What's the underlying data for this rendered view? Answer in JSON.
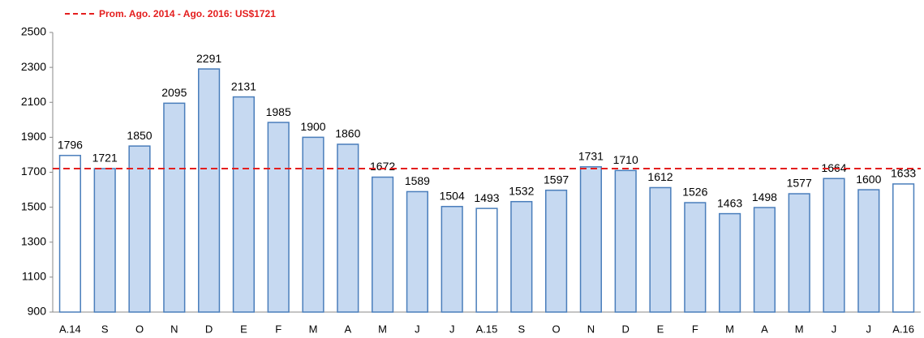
{
  "chart_data": {
    "type": "bar",
    "categories": [
      "A.14",
      "S",
      "O",
      "N",
      "D",
      "E",
      "F",
      "M",
      "A",
      "M",
      "J",
      "J",
      "A.15",
      "S",
      "O",
      "N",
      "D",
      "E",
      "F",
      "M",
      "A",
      "M",
      "J",
      "J",
      "A.16"
    ],
    "values": [
      1796,
      1721,
      1850,
      2095,
      2291,
      2131,
      1985,
      1900,
      1860,
      1672,
      1589,
      1504,
      1493,
      1532,
      1597,
      1731,
      1710,
      1612,
      1526,
      1463,
      1498,
      1577,
      1664,
      1600,
      1633
    ],
    "colors": [
      "#ffffff",
      "#c6d9f1",
      "#c6d9f1",
      "#c6d9f1",
      "#c6d9f1",
      "#c6d9f1",
      "#c6d9f1",
      "#c6d9f1",
      "#c6d9f1",
      "#c6d9f1",
      "#c6d9f1",
      "#c6d9f1",
      "#ffffff",
      "#c6d9f1",
      "#c6d9f1",
      "#c6d9f1",
      "#c6d9f1",
      "#c6d9f1",
      "#c6d9f1",
      "#c6d9f1",
      "#c6d9f1",
      "#c6d9f1",
      "#c6d9f1",
      "#c6d9f1",
      "#ffffff"
    ],
    "edge_color": "#4a7ebb",
    "ylim": [
      900,
      2500
    ],
    "yticks": [
      900,
      1100,
      1300,
      1500,
      1700,
      1900,
      2100,
      2300,
      2500
    ],
    "grid": false,
    "reference_line": {
      "value": 1721,
      "label": "Prom. Ago. 2014 - Ago. 2016: US$1721",
      "color": "#e41e1e"
    }
  }
}
